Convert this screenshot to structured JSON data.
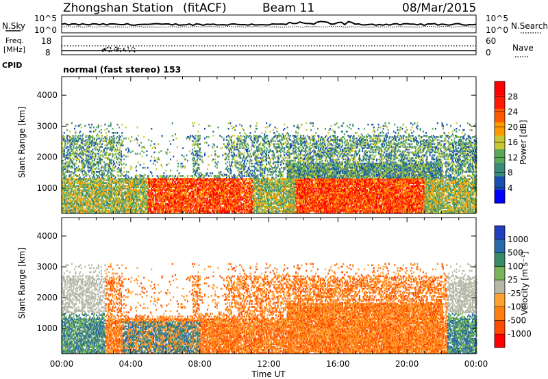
{
  "header": {
    "station": "Zhongshan Station",
    "mode": "(fitACF)",
    "beam": "Beam 11",
    "date": "08/Mar/2015"
  },
  "noise_panel": {
    "left_label": "N.Sky",
    "ticks_left": [
      "10^5",
      "10^0"
    ],
    "right_label": "N.Search",
    "ticks_right": [
      "10^5",
      "10^0"
    ]
  },
  "freq_panel": {
    "left_label_1": "Freq.",
    "left_label_2": "[MHz]",
    "ticks_left": [
      "18",
      "8"
    ],
    "right_label": "Nave",
    "ticks_right": [
      "60",
      "0"
    ],
    "cpid_label": "CPID",
    "cpid_text": "normal (fast stereo) 153"
  },
  "colors": {
    "power_scale": [
      "#0000ff",
      "#1a4fb0",
      "#3a8a7a",
      "#5aa85a",
      "#c8c832",
      "#ff9a00",
      "#ff5a00",
      "#ff1a00",
      "#ff0000"
    ],
    "velocity_scale": [
      "#2040c0",
      "#2a6aa8",
      "#3a8a6a",
      "#7ab45a",
      "#b8b8a8",
      "#ffa030",
      "#ff8010",
      "#ff4a00",
      "#ff0000"
    ]
  },
  "chart_data": [
    {
      "type": "heatmap",
      "name": "power",
      "ylabel": "Slant Range [km]",
      "yticks": [
        "4000",
        "3000",
        "2000",
        "1000"
      ],
      "ytick_values": [
        4000,
        3000,
        2000,
        1000
      ],
      "ylim": [
        180,
        4600
      ],
      "xticks": [
        "00:00",
        "04:00",
        "08:00",
        "12:00",
        "16:00",
        "20:00",
        "00:00"
      ],
      "xlim": [
        0,
        24
      ],
      "colorbar_label": "Power [dB]",
      "colorbar_ticks": [
        "28",
        "24",
        "20",
        "16",
        "12",
        "8",
        "4"
      ],
      "clim": [
        0,
        30
      ]
    },
    {
      "type": "heatmap",
      "name": "velocity",
      "ylabel": "Slant Range [km]",
      "yticks": [
        "4000",
        "3000",
        "2000",
        "1000"
      ],
      "ytick_values": [
        4000,
        3000,
        2000,
        1000
      ],
      "ylim": [
        180,
        4600
      ],
      "xticks": [
        "00:00",
        "04:00",
        "08:00",
        "12:00",
        "16:00",
        "20:00",
        "00:00"
      ],
      "xlim": [
        0,
        24
      ],
      "xlabel": "Time UT",
      "colorbar_label": "Velocity [m s⁻¹]",
      "colorbar_ticks": [
        "1000",
        "500",
        "100",
        "25",
        "-25",
        "-100",
        "-500",
        "-1000"
      ],
      "clim": [
        -1000,
        1000
      ]
    }
  ]
}
